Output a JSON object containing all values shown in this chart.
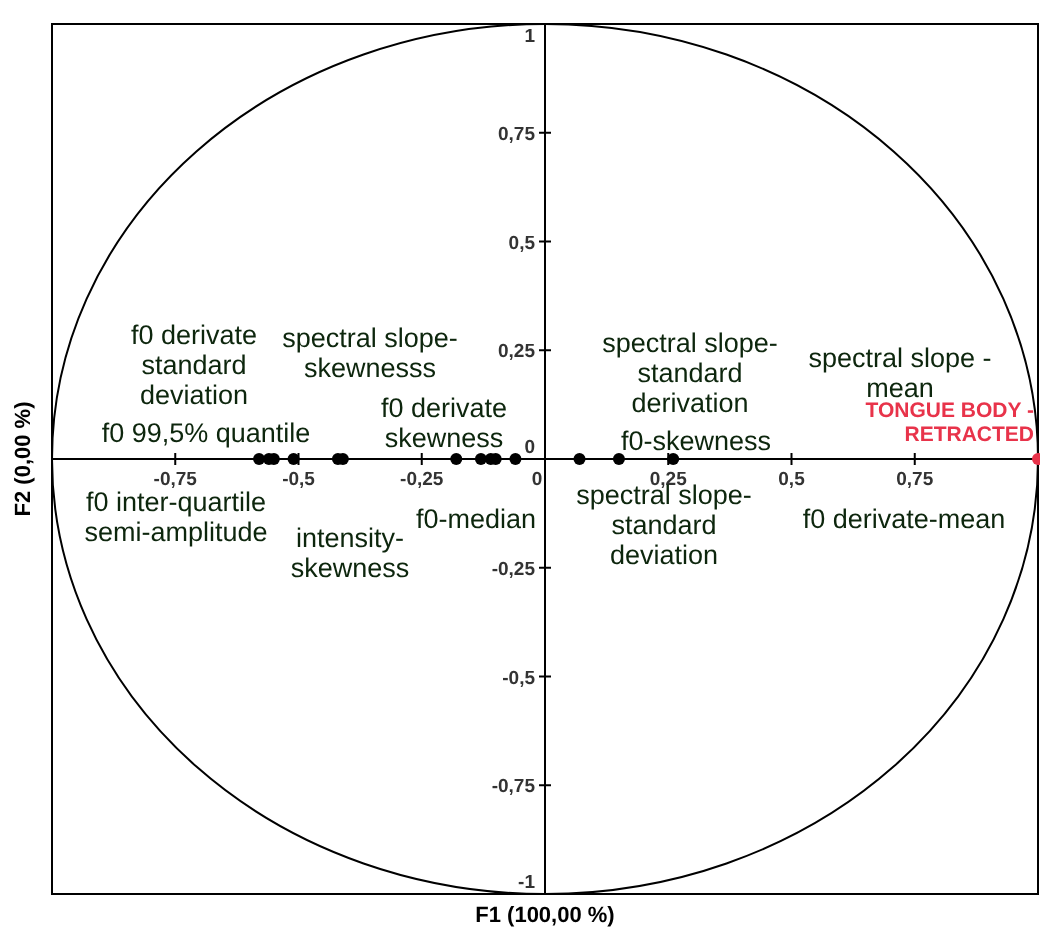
{
  "chart_data": {
    "type": "scatter",
    "xlabel": "F1 (100,00 %)",
    "ylabel": "F2 (0,00 %)",
    "xlim": [
      -1,
      1
    ],
    "ylim": [
      -1,
      1
    ],
    "xticks": [
      {
        "value": -0.75,
        "label": "-0,75"
      },
      {
        "value": -0.5,
        "label": "-0,5"
      },
      {
        "value": -0.25,
        "label": "-0,25"
      },
      0,
      {
        "value": 0.25,
        "label": "0,25"
      },
      {
        "value": 0.5,
        "label": "0,5"
      },
      {
        "value": 0.75,
        "label": "0,75"
      }
    ],
    "yticks": [
      -1,
      {
        "value": -0.75,
        "label": "-0,75"
      },
      {
        "value": -0.5,
        "label": "-0,5"
      },
      {
        "value": -0.25,
        "label": "-0,25"
      },
      0,
      {
        "value": 0.25,
        "label": "0,25"
      },
      {
        "value": 0.5,
        "label": "0,5"
      },
      {
        "value": 0.75,
        "label": "0,75"
      },
      1
    ],
    "marker": "circle",
    "grid": false,
    "series": [
      {
        "color": "#000000",
        "x": [
          -0.58,
          -0.56,
          -0.55,
          -0.51,
          -0.42,
          -0.41,
          -0.18,
          -0.13,
          -0.11,
          -0.1,
          -0.06,
          0.07,
          0.15,
          0.26
        ],
        "values": [
          0,
          0,
          0,
          0,
          0,
          0,
          0,
          0,
          0,
          0,
          0,
          0,
          0,
          0
        ]
      },
      {
        "name": "TONGUE BODY -\nRETRACTED",
        "color": "#e8334a",
        "x": [
          1
        ],
        "values": [
          0
        ]
      }
    ],
    "annotations": [
      "f0 derivate\nstandard\ndeviation",
      "f0 99,5% quantile",
      "f0 inter-quartile\nsemi-amplitude",
      "spectral slope-\nskewnesss",
      "intensity-\nskewness",
      "f0 derivate\nskewness",
      "f0-median",
      "spectral slope-\nstandard\nderivation",
      "f0-skewness",
      "spectral slope-\nstandard\ndeviation",
      "spectral slope -\nmean",
      "f0 derivate-mean"
    ]
  }
}
